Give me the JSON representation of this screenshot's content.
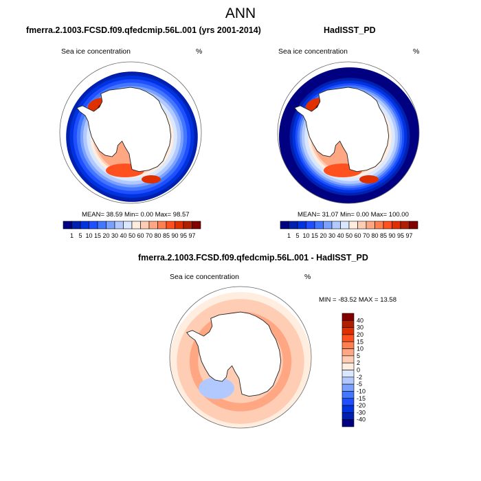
{
  "figure": {
    "title": "ANN"
  },
  "colors": {
    "abs_palette": [
      "#000080",
      "#0020b0",
      "#0033e0",
      "#1f4fff",
      "#4477ff",
      "#7ba1ff",
      "#b2c9ff",
      "#d9e8ff",
      "#ffeee0",
      "#ffcdb4",
      "#ffa683",
      "#ff7f50",
      "#ff5020",
      "#e03000",
      "#b02000",
      "#800000"
    ],
    "diff_palette": [
      "#800000",
      "#b02000",
      "#e03000",
      "#ff5020",
      "#ff7f50",
      "#ffa683",
      "#ffcdb4",
      "#ffeee0",
      "#d9e8ff",
      "#b2c9ff",
      "#7ba1ff",
      "#4477ff",
      "#1f4fff",
      "#0033e0",
      "#0020b0",
      "#000080"
    ],
    "land": "#ffffff",
    "coast": "#222222"
  },
  "chart_data": [
    {
      "type": "heatmap",
      "projection": "south-polar-stereographic",
      "title": "fmerra.2.1003.FCSD.f09.qfedcmip.56L.001 (yrs 2001-2014)",
      "left_label": "Sea ice concentration",
      "right_label": "%",
      "stats": "MEAN=  38.59  Min=   0.00  Max=  98.57",
      "colorbar": {
        "orientation": "horizontal",
        "levels": [
          "1",
          "5",
          "10",
          "15",
          "20",
          "30",
          "40",
          "50",
          "60",
          "70",
          "80",
          "85",
          "90",
          "95",
          "97"
        ]
      },
      "rings": [
        {
          "level_index": 0,
          "r": 1.0
        },
        {
          "level_index": 1,
          "r": 0.93
        },
        {
          "level_index": 2,
          "r": 0.88
        },
        {
          "level_index": 3,
          "r": 0.83
        },
        {
          "level_index": 4,
          "r": 0.78
        },
        {
          "level_index": 5,
          "r": 0.73
        },
        {
          "level_index": 6,
          "r": 0.69
        },
        {
          "level_index": 7,
          "r": 0.64
        },
        {
          "level_index": 8,
          "r": 0.59
        },
        {
          "level_index": 9,
          "r": 0.55
        },
        {
          "level_index": 10,
          "r": 0.52
        }
      ],
      "outer_open": true
    },
    {
      "type": "heatmap",
      "projection": "south-polar-stereographic",
      "title": "HadISST_PD",
      "left_label": "Sea ice concentration",
      "right_label": "%",
      "stats": "MEAN=  31.07  Min=   0.00  Max= 100.00",
      "colorbar": {
        "orientation": "horizontal",
        "levels": [
          "1",
          "5",
          "10",
          "15",
          "20",
          "30",
          "40",
          "50",
          "60",
          "70",
          "80",
          "85",
          "90",
          "95",
          "97"
        ]
      },
      "rings": [
        {
          "level_index": 0,
          "r": 1.0
        },
        {
          "level_index": 1,
          "r": 0.85
        },
        {
          "level_index": 2,
          "r": 0.81
        },
        {
          "level_index": 3,
          "r": 0.77
        },
        {
          "level_index": 4,
          "r": 0.74
        },
        {
          "level_index": 5,
          "r": 0.71
        },
        {
          "level_index": 6,
          "r": 0.68
        },
        {
          "level_index": 7,
          "r": 0.64
        },
        {
          "level_index": 8,
          "r": 0.59
        },
        {
          "level_index": 9,
          "r": 0.55
        },
        {
          "level_index": 10,
          "r": 0.52
        }
      ],
      "outer_open": false
    },
    {
      "type": "heatmap",
      "projection": "south-polar-stereographic",
      "title": "fmerra.2.1003.FCSD.f09.qfedcmip.56L.001 - HadISST_PD",
      "left_label": "Sea ice concentration",
      "right_label": "%",
      "stats": "MIN = -83.52 MAX =  13.58",
      "colorbar": {
        "orientation": "vertical",
        "levels": [
          "40",
          "30",
          "20",
          "15",
          "10",
          "5",
          "2",
          "0",
          "-2",
          "-5",
          "-10",
          "-15",
          "-20",
          "-30",
          "-40"
        ]
      },
      "rings": [
        {
          "level_index": 7,
          "r": 1.0
        },
        {
          "level_index": 6,
          "r": 0.9
        },
        {
          "level_index": 5,
          "r": 0.72
        },
        {
          "level_index": 6,
          "r": 0.6
        }
      ],
      "outer_open": false
    }
  ]
}
